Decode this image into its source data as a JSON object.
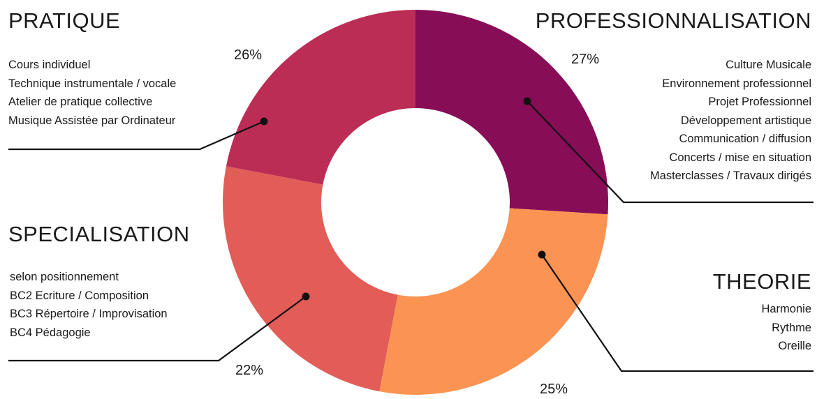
{
  "chart_data": {
    "type": "pie",
    "style": "donut",
    "unit": "%",
    "slices": [
      {
        "key": "pratique",
        "title": "PRATIQUE",
        "value": 26,
        "label": "26%",
        "color": "#870d57",
        "items": [
          "Cours individuel",
          "Technique instrumentale / vocale",
          "Atelier de pratique collective",
          "Musique Assistée par Ordinateur"
        ]
      },
      {
        "key": "professionnalisation",
        "title": "PROFESSIONNALISATION",
        "value": 27,
        "label": "27%",
        "color": "#fb9352",
        "items": [
          "Culture Musicale",
          "Environnement professionnel",
          "Projet Professionnel",
          "Développement artistique",
          "Communication / diffusion",
          "Concerts / mise en situation",
          "Masterclasses / Travaux dirigés"
        ]
      },
      {
        "key": "theorie",
        "title": "THEORIE",
        "value": 25,
        "label": "25%",
        "color": "#e25d58",
        "items": [
          "Harmonie",
          "Rythme",
          "Oreille"
        ]
      },
      {
        "key": "specialisation",
        "title": "SPECIALISATION",
        "value": 22,
        "label": "22%",
        "color": "#bc2d55",
        "items": [
          "selon positionnement",
          "BC2 Ecriture / Composition",
          "BC3 Répertoire / Improvisation",
          "BC4 Pédagogie"
        ]
      }
    ],
    "start": "top",
    "direction": "clockwise",
    "legend": "none"
  }
}
